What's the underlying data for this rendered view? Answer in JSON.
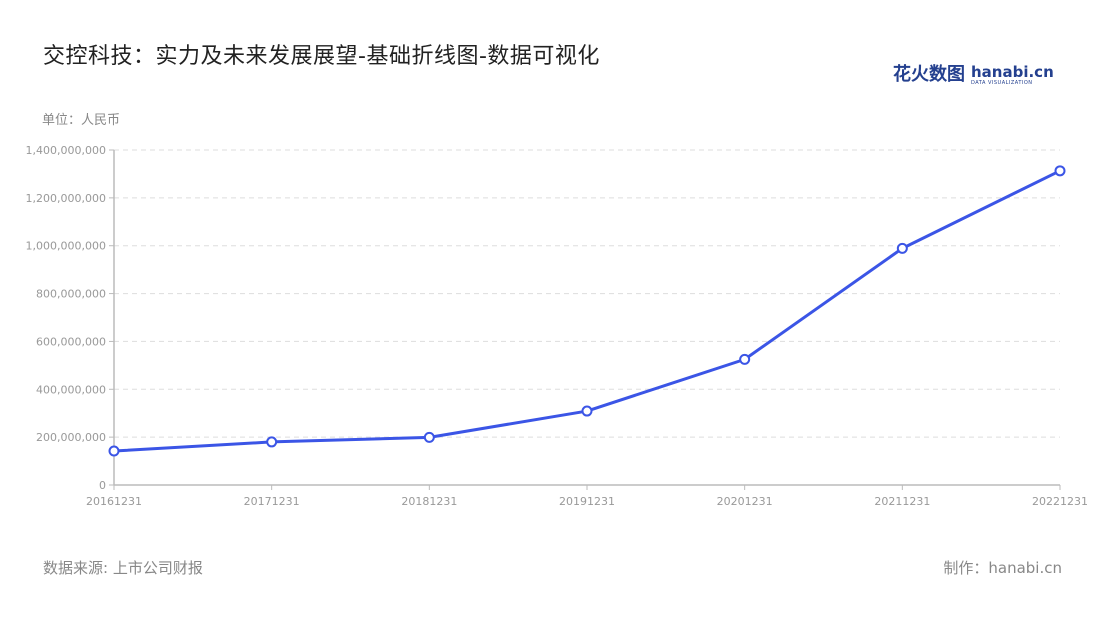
{
  "title": "交控科技：实力及未来发展展望-基础折线图-数据可视化",
  "logo": {
    "cn": "花火数图",
    "en": "hanabi.cn",
    "sub": "DATA VISUALIZATION"
  },
  "unit_label": "单位：人民币",
  "footer": {
    "source": "数据来源: 上市公司财报",
    "maker": "制作：hanabi.cn"
  },
  "colors": {
    "line": "#3b55e6",
    "grid": "#dddddd",
    "axis": "#bbbbbb",
    "tick_text": "#999999"
  },
  "chart_data": {
    "type": "line",
    "title": "交控科技：实力及未来发展展望-基础折线图-数据可视化",
    "ylabel": "单位：人民币",
    "xlabel": "",
    "categories": [
      "20161231",
      "20171231",
      "20181231",
      "20191231",
      "20201231",
      "20211231",
      "20221231"
    ],
    "values": [
      142000000,
      180000000,
      199000000,
      309000000,
      525000000,
      989000000,
      1313000000
    ],
    "ylim": [
      0,
      1400000000
    ],
    "yticks": [
      0,
      200000000,
      400000000,
      600000000,
      800000000,
      1000000000,
      1200000000,
      1400000000
    ],
    "ytick_labels": [
      "0",
      "200,000,000",
      "400,000,000",
      "600,000,000",
      "800,000,000",
      "1,000,000,000",
      "1,200,000,000",
      "1,400,000,000"
    ],
    "grid": true,
    "marker": "hollow-circle",
    "legend": "none"
  }
}
